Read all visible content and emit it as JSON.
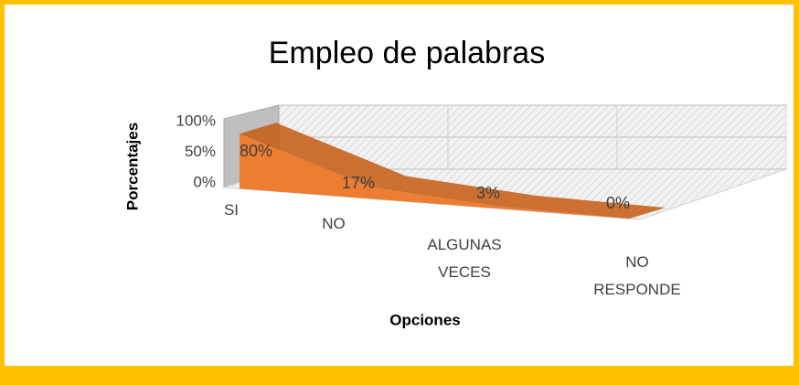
{
  "chart_data": {
    "type": "area3d",
    "title": "Empleo de palabras",
    "categories": [
      "SI",
      "NO",
      "ALGUNAS VECES",
      "NO RESPONDE"
    ],
    "values": [
      80,
      17,
      3,
      0
    ],
    "value_labels": [
      "80%",
      "17%",
      "3%",
      "0%"
    ],
    "color": "#ED7D31",
    "ylim": [
      0,
      100
    ],
    "yticks": [
      {
        "value": 0,
        "label": "0%"
      },
      {
        "value": 50,
        "label": "50%"
      },
      {
        "value": 100,
        "label": "100%"
      }
    ],
    "grid": true,
    "xlabel": "Opciones",
    "ylabel": "Porcentajes"
  }
}
